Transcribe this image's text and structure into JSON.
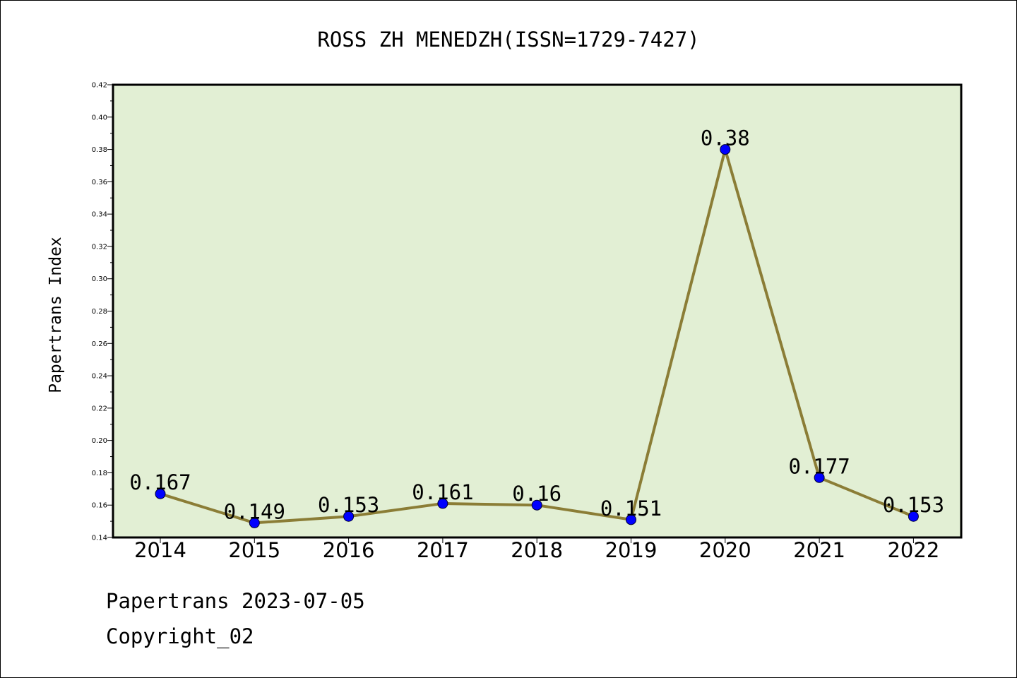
{
  "chart_data": {
    "type": "line",
    "title": "ROSS ZH MENEDZH(ISSN=1729-7427)",
    "xlabel": "",
    "ylabel": "Papertrans Index",
    "categories": [
      "2014",
      "2015",
      "2016",
      "2017",
      "2018",
      "2019",
      "2020",
      "2021",
      "2022"
    ],
    "series": [
      {
        "values": [
          0.167,
          0.149,
          0.153,
          0.161,
          0.16,
          0.151,
          0.38,
          0.177,
          0.153
        ],
        "labels": [
          "0.167",
          "0.149",
          "0.153",
          "0.161",
          "0.16",
          "0.151",
          "0.38",
          "0.177",
          "0.153"
        ]
      }
    ],
    "ylim": [
      0.14,
      0.42
    ],
    "yticks": [
      "0.14",
      "0.16",
      "0.18",
      "0.20",
      "0.22",
      "0.24",
      "0.26",
      "0.28",
      "0.30",
      "0.32",
      "0.34",
      "0.36",
      "0.38",
      "0.40",
      "0.42"
    ],
    "grid": false,
    "legend": "none",
    "colors": {
      "plot_background": "#e2efd4",
      "line": "#8b7d36",
      "marker": "#0000ff"
    }
  },
  "footer": {
    "date_text": "Papertrans 2023-07-05",
    "copyright_text": "Copyright_02"
  }
}
